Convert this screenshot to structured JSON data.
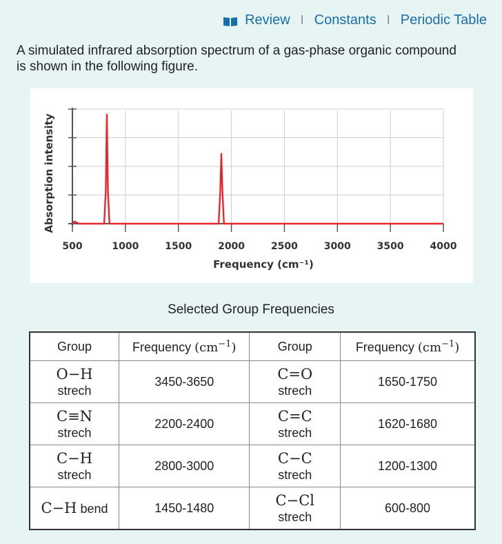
{
  "nav": {
    "review": "Review",
    "constants": "Constants",
    "periodic_table": "Periodic Table",
    "separator": "I"
  },
  "intro": "A simulated infrared absorption spectrum of a gas-phase organic compound is shown in the following figure.",
  "chart_data": {
    "type": "line",
    "xlabel": "Frequency (cm⁻¹)",
    "ylabel": "Absorption intensity",
    "xlim": [
      500,
      4000
    ],
    "ylim": [
      0,
      1
    ],
    "x_ticks": [
      "500",
      "1000",
      "1500",
      "2000",
      "2500",
      "3000",
      "3500",
      "4000"
    ],
    "grid": true,
    "series": [
      {
        "color": "#e8262b",
        "points": [
          [
            500,
            0.0
          ],
          [
            520,
            0.02
          ],
          [
            560,
            0.0
          ],
          [
            800,
            0.0
          ],
          [
            815,
            0.3
          ],
          [
            825,
            1.0
          ],
          [
            835,
            0.3
          ],
          [
            850,
            0.0
          ],
          [
            1880,
            0.0
          ],
          [
            1895,
            0.3
          ],
          [
            1905,
            0.64
          ],
          [
            1915,
            0.3
          ],
          [
            1930,
            0.0
          ],
          [
            4000,
            0.0
          ]
        ]
      }
    ]
  },
  "table": {
    "title": "Selected Group Frequencies",
    "headers": {
      "group": "Group",
      "frequency": "Frequency",
      "unit": "cm",
      "exp": "−1"
    },
    "rows": [
      {
        "g1": "O−H",
        "g1b": "strech",
        "f1": "3450-3650",
        "g2": "C=O",
        "g2b": "strech",
        "f2": "1650-1750"
      },
      {
        "g1": "C≡N",
        "g1b": "strech",
        "f1": "2200-2400",
        "g2": "C=C",
        "g2b": "strech",
        "f2": "1620-1680"
      },
      {
        "g1": "C−H",
        "g1b": "strech",
        "f1": "2800-3000",
        "g2": "C−C",
        "g2b": "strech",
        "f2": "1200-1300"
      },
      {
        "g1": "C−H",
        "g1b": "bend",
        "f1": "1450-1480",
        "g2": "C−Cl",
        "g2b": "strech",
        "f2": "600-800"
      }
    ]
  },
  "colors": {
    "link": "#1a6ea8",
    "spectrum": "#e8262b",
    "background": "#e6f4f3"
  }
}
